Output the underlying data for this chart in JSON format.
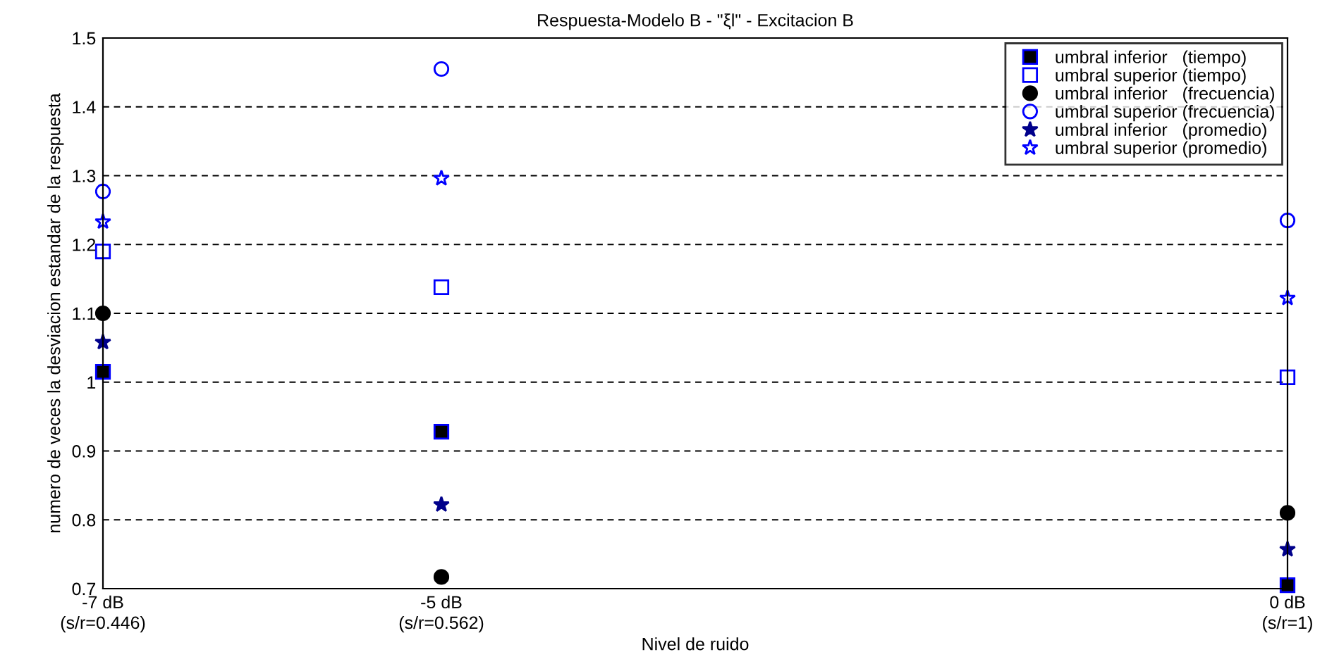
{
  "chart_data": {
    "type": "scatter",
    "title": "Respuesta-Modelo B - \"ξl\" - Excitacion B",
    "xlabel": "Nivel de ruido",
    "ylabel": "numero de veces la desviacion estandar de la respuesta",
    "x": [
      -7,
      -5,
      0
    ],
    "series": [
      {
        "name": "umbral inferior   (tiempo)",
        "color": "#000000",
        "marker": "square",
        "values": [
          1.015,
          0.928,
          0.705
        ]
      },
      {
        "name": "umbral superior (tiempo)",
        "color": "#0000ff",
        "marker": "square open",
        "values": [
          1.19,
          1.138,
          1.007
        ]
      },
      {
        "name": "umbral inferior   (frecuencia)",
        "color": "#000000",
        "marker": "circle",
        "values": [
          1.1,
          0.717,
          0.81
        ]
      },
      {
        "name": "umbral superior (frecuencia)",
        "color": "#0000ff",
        "marker": "circle open",
        "values": [
          1.277,
          1.455,
          1.235
        ]
      },
      {
        "name": "umbral inferior   (promedio)",
        "color": "#00008b",
        "marker": "star",
        "values": [
          1.058,
          0.822,
          0.757
        ]
      },
      {
        "name": "umbral superior (promedio)",
        "color": "#0000ff",
        "marker": "star open",
        "values": [
          1.233,
          1.296,
          1.122
        ]
      }
    ],
    "xlim": [
      -7,
      0
    ],
    "xticks": [
      {
        "value": -7,
        "label": "-7 dB"
      },
      {
        "value": -5,
        "label": "-5 dB"
      },
      {
        "value": 0,
        "label": "0 dB"
      }
    ],
    "annotations": [
      "(s/r=0.446)",
      "(s/r=0.562)",
      "(s/r=1)"
    ],
    "ylim": [
      0.7,
      1.5
    ],
    "yticks": [
      0.7,
      0.8,
      0.9,
      1,
      1.1,
      1.2,
      1.3,
      1.4,
      1.5
    ],
    "grid": "y",
    "legend": "top right"
  }
}
